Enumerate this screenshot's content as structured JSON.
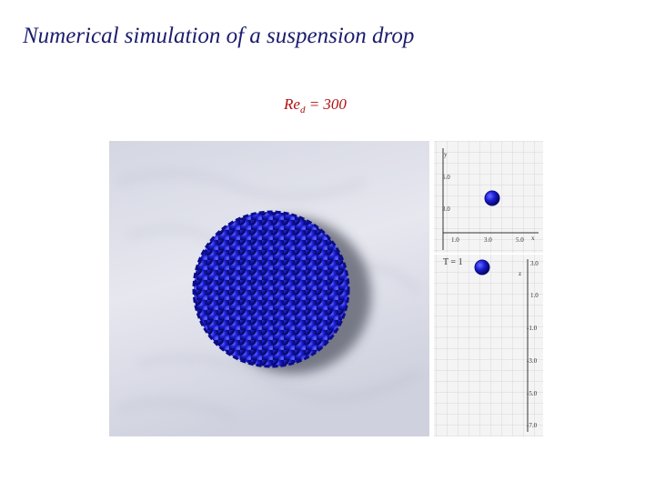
{
  "title": "Numerical simulation of a suspension drop",
  "subtitle": {
    "main": "Re",
    "subscript": "d",
    "rest": " = 300"
  },
  "top_panel": {
    "y_axis_label": "y",
    "y_tick_labels": [
      "5.0",
      "3.0"
    ],
    "x_tick_labels": [
      "1.0",
      "3.0",
      "5.0"
    ],
    "x_axis_label": "x"
  },
  "bottom_panel": {
    "time_label": "T = 1",
    "z_axis_label": "z",
    "z_tick_labels": [
      "3.0",
      "1.0",
      "-1.0",
      "-3.0",
      "-5.0",
      "-7.0"
    ]
  }
}
